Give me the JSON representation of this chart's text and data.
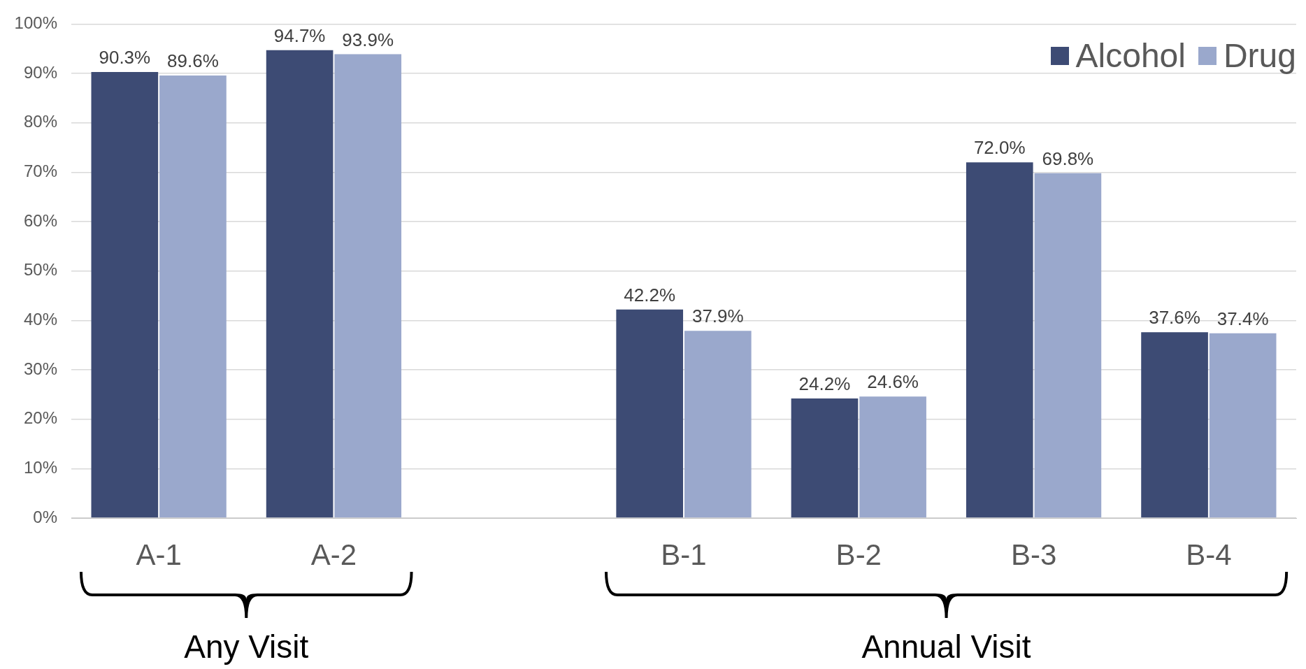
{
  "chart_data": {
    "type": "bar",
    "categories": [
      "A-1",
      "A-2",
      null,
      "B-1",
      "B-2",
      "B-3",
      "B-4"
    ],
    "series": [
      {
        "name": "Alcohol",
        "color": "#3d4b74",
        "values": [
          90.3,
          94.7,
          null,
          42.2,
          24.2,
          72.0,
          37.6
        ]
      },
      {
        "name": "Drug",
        "color": "#9aa8cc",
        "values": [
          89.6,
          93.9,
          null,
          37.9,
          24.6,
          69.8,
          37.4
        ]
      }
    ],
    "ylim": [
      0,
      100
    ],
    "yticks": [
      {
        "value": 0,
        "label": "0%"
      },
      {
        "value": 10,
        "label": "10%"
      },
      {
        "value": 20,
        "label": "20%"
      },
      {
        "value": 30,
        "label": "30%"
      },
      {
        "value": 40,
        "label": "40%"
      },
      {
        "value": 50,
        "label": "50%"
      },
      {
        "value": 60,
        "label": "60%"
      },
      {
        "value": 70,
        "label": "70%"
      },
      {
        "value": 80,
        "label": "80%"
      },
      {
        "value": 90,
        "label": "90%"
      },
      {
        "value": 100,
        "label": "100%"
      }
    ],
    "value_labels": [
      [
        "90.3%",
        "94.7%",
        null,
        "42.2%",
        "24.2%",
        "72.0%",
        "37.6%"
      ],
      [
        "89.6%",
        "93.9%",
        null,
        "37.9%",
        "24.6%",
        "69.8%",
        "37.4%"
      ]
    ],
    "grid": "y",
    "legend": "top right",
    "annotations": [
      "Any Visit",
      "Annual Visit"
    ]
  }
}
